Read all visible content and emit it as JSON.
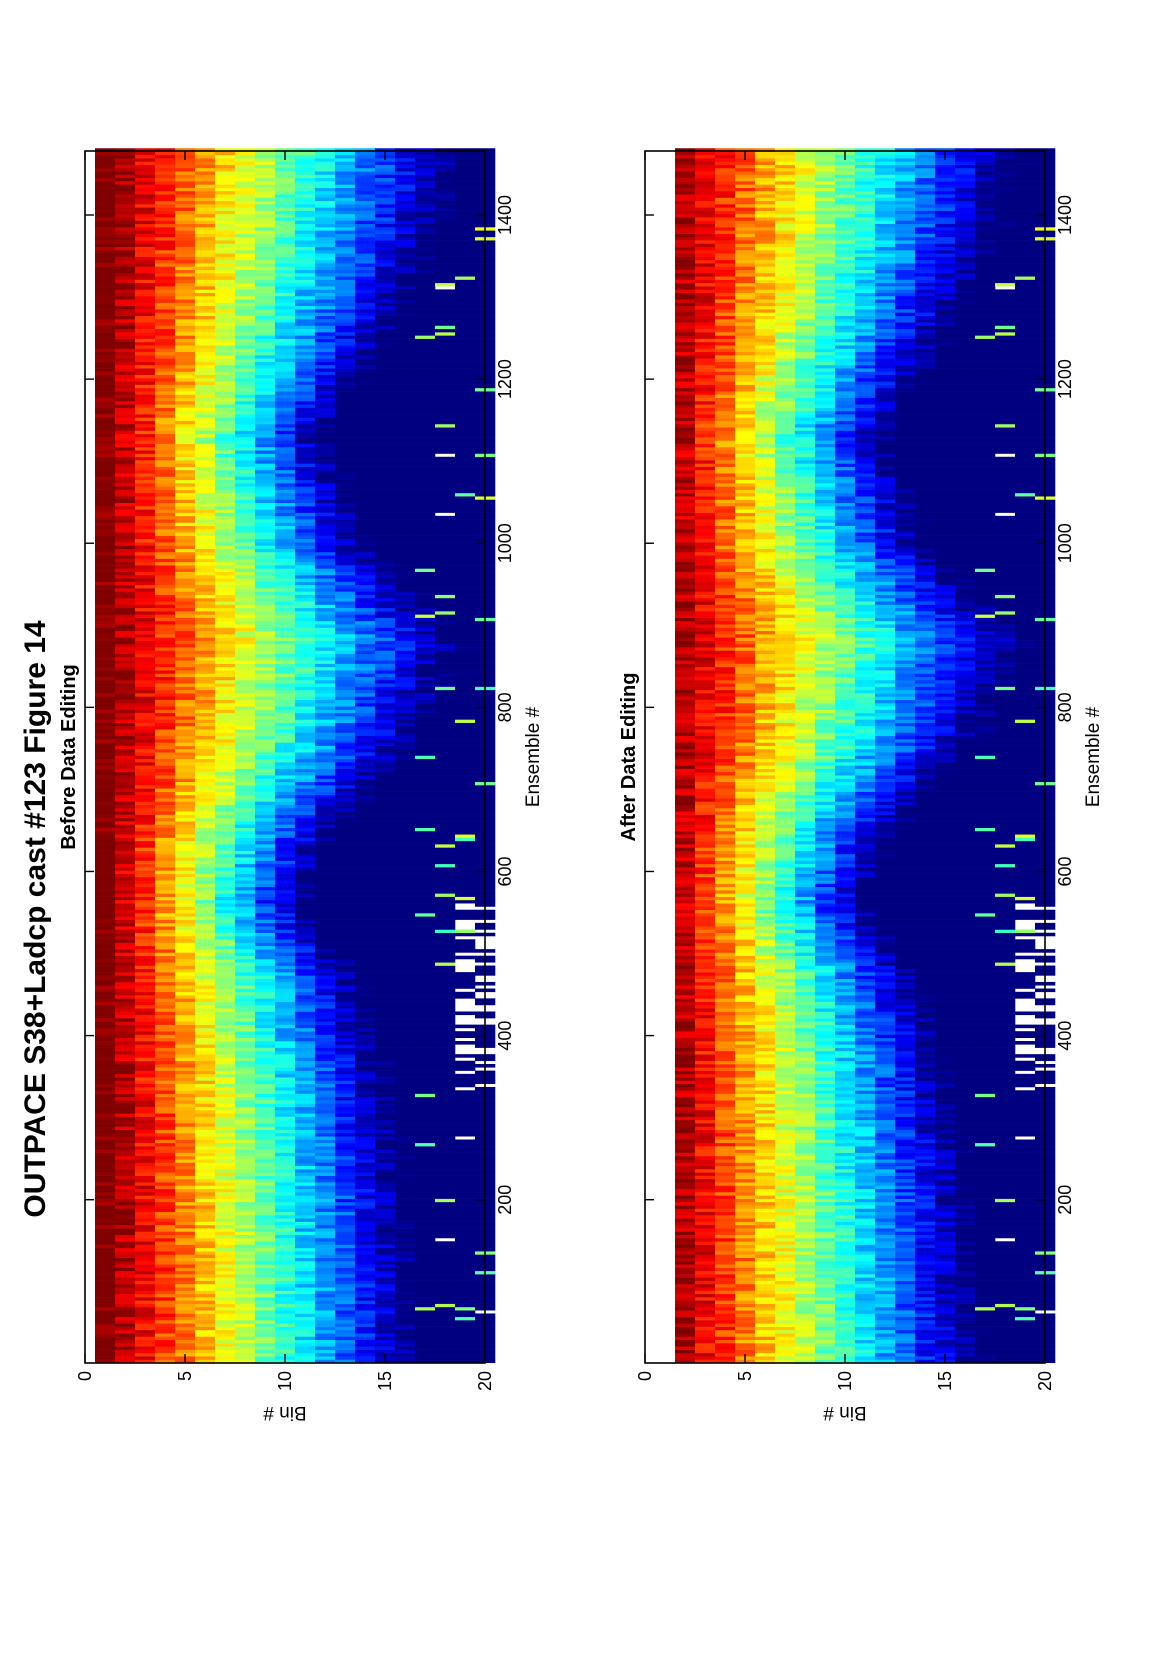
{
  "figure": {
    "title": "OUTPACE S38+Ladcp cast #123  Figure 14"
  },
  "chart_data": [
    {
      "type": "heatmap",
      "title": "Before Data Editing",
      "xlabel": "Ensemble #",
      "ylabel": "Bin #",
      "xlim": [
        1,
        1478
      ],
      "ylim": [
        0,
        20
      ],
      "xticks": [
        200,
        400,
        600,
        800,
        1000,
        1200,
        1400
      ],
      "yticks": [
        0,
        5,
        10,
        15,
        20
      ],
      "bins": 20,
      "colormap": "jet",
      "first_bin_present": true,
      "intensity_profile": {
        "ensemble": [
          1,
          200,
          350,
          470,
          560,
          650,
          760,
          880,
          1000,
          1130,
          1250,
          1350,
          1478
        ],
        "high_value_depth_bin": [
          10.5,
          10.0,
          9.0,
          7.5,
          5.0,
          6.5,
          10.5,
          12.5,
          8.0,
          6.0,
          9.0,
          11.0,
          12.5
        ]
      },
      "gaps": {
        "ensemble_range": [
          330,
          560
        ],
        "bins": [
          18.5,
          20
        ]
      }
    },
    {
      "type": "heatmap",
      "title": "After Data Editing",
      "xlabel": "Ensemble #",
      "ylabel": "Bin #",
      "xlim": [
        1,
        1478
      ],
      "ylim": [
        0,
        20
      ],
      "xticks": [
        200,
        400,
        600,
        800,
        1000,
        1200,
        1400
      ],
      "yticks": [
        0,
        5,
        10,
        15,
        20
      ],
      "bins": 20,
      "colormap": "jet",
      "first_bin_present": false,
      "intensity_profile": {
        "ensemble": [
          1,
          200,
          350,
          470,
          560,
          650,
          760,
          880,
          1000,
          1130,
          1250,
          1350,
          1478
        ],
        "high_value_depth_bin": [
          10.5,
          10.0,
          9.0,
          7.5,
          5.0,
          6.5,
          10.5,
          12.5,
          8.0,
          6.0,
          9.0,
          11.0,
          12.5
        ]
      },
      "gaps": {
        "ensemble_range": [
          330,
          560
        ],
        "bins": [
          18.5,
          20
        ]
      }
    }
  ]
}
